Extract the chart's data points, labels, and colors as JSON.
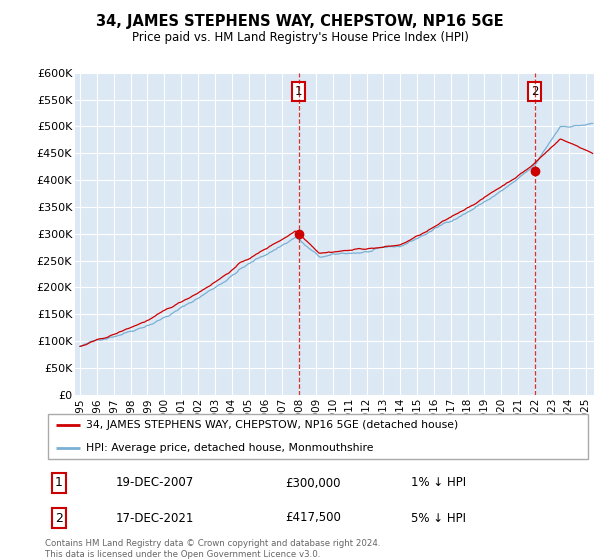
{
  "title": "34, JAMES STEPHENS WAY, CHEPSTOW, NP16 5GE",
  "subtitle": "Price paid vs. HM Land Registry's House Price Index (HPI)",
  "line1_color": "#cc0000",
  "line2_color": "#7ab0d4",
  "sale1_date": 2007.97,
  "sale1_price": 300000,
  "sale2_date": 2021.97,
  "sale2_price": 417500,
  "legend_line1": "34, JAMES STEPHENS WAY, CHEPSTOW, NP16 5GE (detached house)",
  "legend_line2": "HPI: Average price, detached house, Monmouthshire",
  "annotation1_label": "1",
  "annotation1_date": "19-DEC-2007",
  "annotation1_price": "£300,000",
  "annotation1_hpi": "1% ↓ HPI",
  "annotation2_label": "2",
  "annotation2_date": "17-DEC-2021",
  "annotation2_price": "£417,500",
  "annotation2_hpi": "5% ↓ HPI",
  "footer": "Contains HM Land Registry data © Crown copyright and database right 2024.\nThis data is licensed under the Open Government Licence v3.0.",
  "ylim": [
    0,
    600000
  ],
  "xlim_start": 1994.7,
  "xlim_end": 2025.5
}
